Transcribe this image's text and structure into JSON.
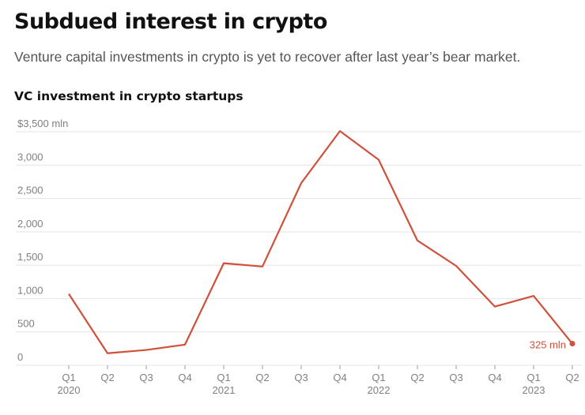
{
  "header": {
    "title": "Subdued interest in crypto",
    "subtitle": "Venture capital investments in crypto is yet to recover after last year’s bear market."
  },
  "chart_data": {
    "type": "line",
    "title": "VC investment in crypto startups",
    "xlabel": "",
    "ylabel": "",
    "categories": [
      "Q1",
      "Q2",
      "Q3",
      "Q4",
      "Q1",
      "Q2",
      "Q3",
      "Q4",
      "Q1",
      "Q2",
      "Q3",
      "Q4",
      "Q1",
      "Q2"
    ],
    "year_labels": [
      {
        "index": 0,
        "label": "2020"
      },
      {
        "index": 4,
        "label": "2021"
      },
      {
        "index": 8,
        "label": "2022"
      },
      {
        "index": 12,
        "label": "2023"
      }
    ],
    "series": [
      {
        "name": "VC investment",
        "color": "#d0503c",
        "values": [
          1070,
          180,
          230,
          310,
          1530,
          1480,
          2730,
          3510,
          3080,
          1870,
          1490,
          880,
          1040,
          325
        ]
      }
    ],
    "ylim": [
      0,
      3500
    ],
    "yticks": [
      0,
      500,
      1000,
      1500,
      2000,
      2500,
      3000,
      3500
    ],
    "ytick_labels": [
      "0",
      "500",
      "1,000",
      "1,500",
      "2,000",
      "2,500",
      "3,000",
      "$3,500 mln"
    ],
    "grid": true,
    "annotation": {
      "index": 13,
      "text": "325 mln"
    }
  }
}
